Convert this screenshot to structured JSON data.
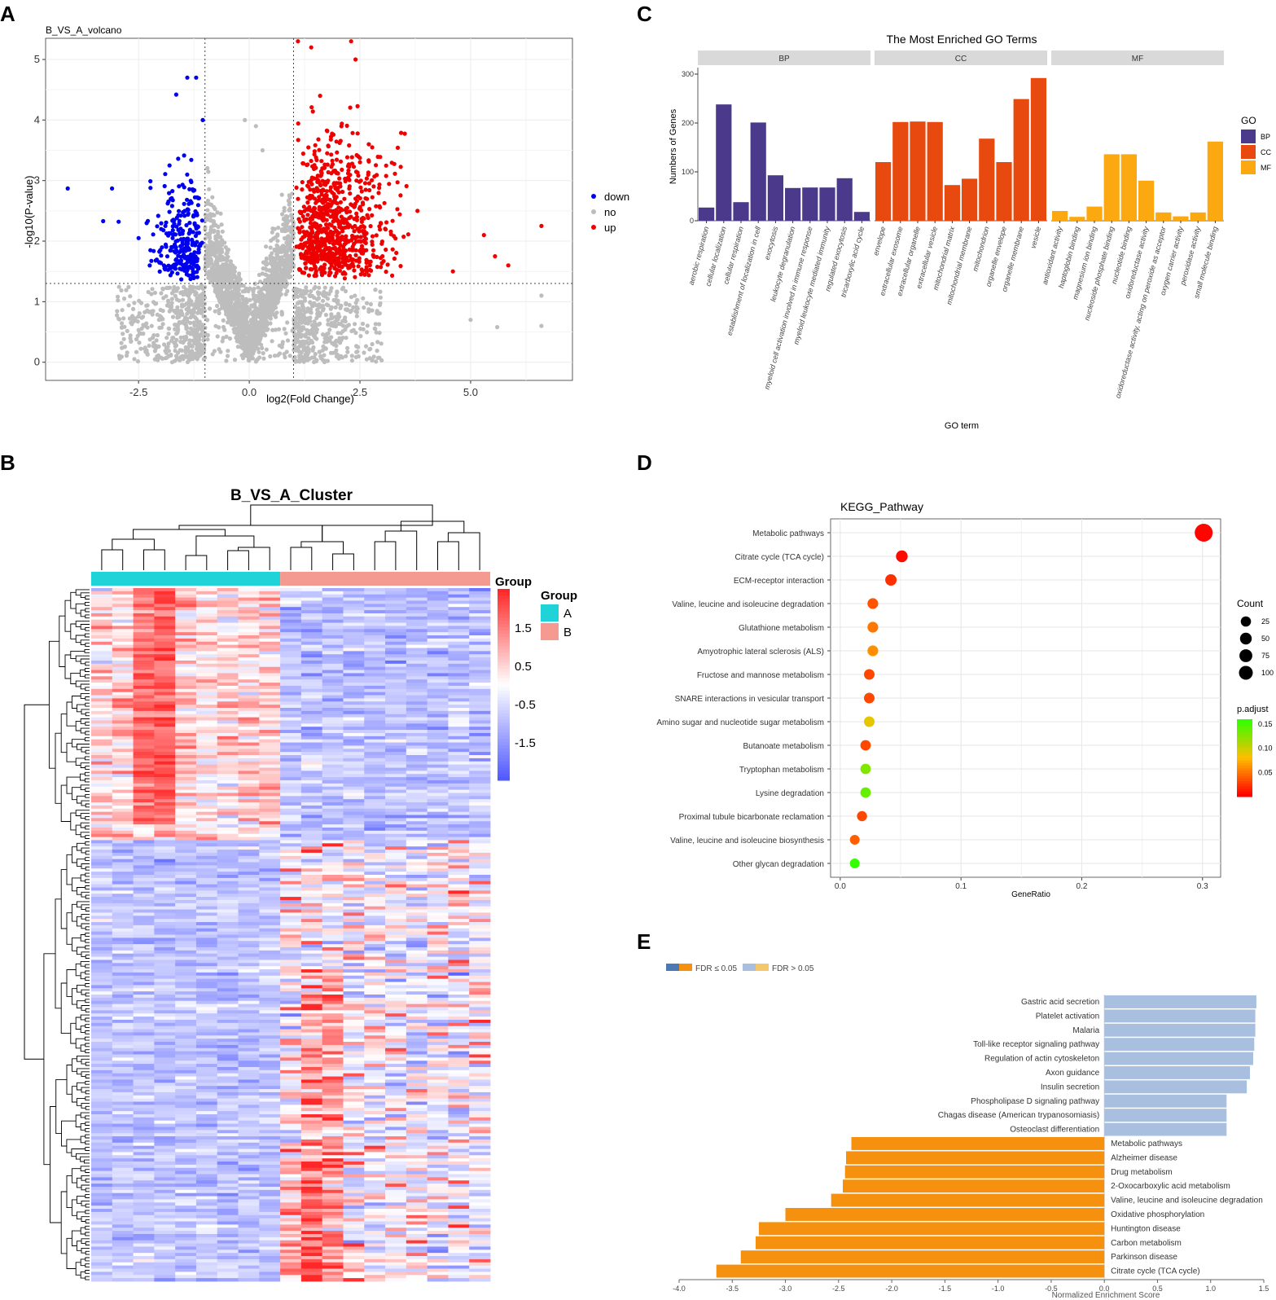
{
  "panel_labels": [
    "A",
    "B",
    "C",
    "D",
    "E"
  ],
  "chart_data": [
    {
      "panel": "A",
      "type": "scatter",
      "title": "B_VS_A_volcano",
      "xlabel": "log2(Fold Change)",
      "ylabel": "-log10(P-value)",
      "xlim": [
        -4.6,
        7.3
      ],
      "ylim": [
        -0.3,
        5.35
      ],
      "xticks": [
        -2.5,
        0.0,
        2.5,
        5.0
      ],
      "xtick_labels": [
        "-2.5",
        "0.0",
        "2.5",
        "5.0"
      ],
      "yticks": [
        0,
        1,
        2,
        3,
        4,
        5
      ],
      "ytick_labels": [
        "0",
        "1",
        "2",
        "3",
        "4",
        "5"
      ],
      "thresholds": {
        "log2fc": [
          -1,
          1
        ],
        "neg_log10_p": 1.3
      },
      "legend": [
        {
          "name": "down",
          "color": "#0000ee"
        },
        {
          "name": "no",
          "color": "#bdbdbd"
        },
        {
          "name": "up",
          "color": "#ee0000"
        }
      ],
      "highlight_points": {
        "down": [
          [
            -4.1,
            2.87
          ],
          [
            -3.1,
            2.87
          ],
          [
            -3.3,
            2.33
          ],
          [
            -2.95,
            2.32
          ],
          [
            -1.4,
            4.7
          ],
          [
            -1.2,
            4.7
          ],
          [
            -1.65,
            4.42
          ],
          [
            -1.05,
            4.0
          ],
          [
            -2.5,
            2.05
          ],
          [
            -1.8,
            3.25
          ]
        ],
        "up": [
          [
            1.1,
            5.3
          ],
          [
            1.4,
            5.2
          ],
          [
            2.3,
            5.3
          ],
          [
            2.4,
            5.0
          ],
          [
            3.8,
            2.5
          ],
          [
            5.3,
            2.1
          ],
          [
            6.6,
            2.25
          ],
          [
            5.85,
            1.6
          ],
          [
            5.55,
            1.75
          ],
          [
            4.6,
            1.5
          ],
          [
            2.7,
            3.6
          ],
          [
            1.6,
            4.4
          ]
        ],
        "no": [
          [
            6.6,
            1.1
          ],
          [
            6.6,
            0.6
          ],
          [
            5.6,
            0.58
          ],
          [
            5.0,
            0.7
          ],
          [
            -2.55,
            0.38
          ],
          [
            -0.1,
            4.0
          ],
          [
            0.15,
            3.9
          ],
          [
            0.3,
            3.5
          ]
        ]
      },
      "point_counts": {
        "down": 260,
        "no": 2600,
        "up": 820
      }
    },
    {
      "panel": "B",
      "type": "heatmap",
      "title": "B_VS_A_Cluster",
      "group_label": "Group",
      "groups": [
        {
          "name": "A",
          "color": "#1fd3d8",
          "samples": 9
        },
        {
          "name": "B",
          "color": "#f59a90",
          "samples": 10
        }
      ],
      "colorbar_ticks": [
        1.5,
        0.5,
        -0.5,
        -1.5
      ],
      "colorbar_tick_labels": [
        "1.5",
        "0.5",
        "-0.5",
        "-1.5"
      ],
      "value_range": [
        -2.5,
        2.5
      ],
      "row_count": 220,
      "col_count": 19
    },
    {
      "panel": "C",
      "type": "bar",
      "title": "The Most Enriched GO Terms",
      "xlabel": "GO term",
      "ylabel": "Numbers of Genes",
      "ylim": [
        0,
        310
      ],
      "yticks": [
        0,
        100,
        200,
        300
      ],
      "legend_title": "GO",
      "facets": [
        {
          "name": "BP",
          "color": "#4b3a8c",
          "categories": [
            "aerobic respiration",
            "cellular localization",
            "cellular respiration",
            "establishment of localization in cell",
            "exocytosis",
            "leukocyte degranulation",
            "myeloid cell activation involved in immune response",
            "myeloid leukocyte mediated immunity",
            "regulated exocytosis",
            "tricarboxylic acid cycle"
          ],
          "values": [
            27,
            238,
            38,
            201,
            93,
            67,
            68,
            68,
            87,
            18
          ]
        },
        {
          "name": "CC",
          "color": "#e8490f",
          "categories": [
            "envelope",
            "extracellular exosome",
            "extracellular organelle",
            "extracellular vesicle",
            "mitochondrial matrix",
            "mitochondrial membrane",
            "mitochondrion",
            "organelle envelope",
            "organelle membrane",
            "vesicle"
          ],
          "values": [
            120,
            202,
            203,
            202,
            73,
            86,
            168,
            120,
            249,
            292
          ]
        },
        {
          "name": "MF",
          "color": "#fca811",
          "categories": [
            "antioxidant activity",
            "haptoglobin binding",
            "magnesium ion binding",
            "nucleoside phosphate binding",
            "nucleotide binding",
            "oxidoreductase activity",
            "oxidoreductase activity, acting on peroxide as acceptor",
            "oxygen carrier activity",
            "peroxidase activity",
            "small molecule binding"
          ],
          "values": [
            20,
            8,
            29,
            136,
            136,
            82,
            17,
            9,
            17,
            162
          ]
        }
      ]
    },
    {
      "panel": "D",
      "type": "scatter",
      "title": "KEGG_Pathway",
      "xlabel": "GeneRatio",
      "xlim": [
        -0.008,
        0.315
      ],
      "xticks": [
        0.0,
        0.1,
        0.2,
        0.3
      ],
      "xtick_labels": [
        "0.0",
        "0.1",
        "0.2",
        "0.3"
      ],
      "categories": [
        "Metabolic pathways",
        "Citrate cycle (TCA cycle)",
        "ECM-receptor interaction",
        "Valine, leucine and isoleucine degradation",
        "Glutathione metabolism",
        "Amyotrophic lateral sclerosis (ALS)",
        "Fructose and mannose metabolism",
        "SNARE interactions in vesicular transport",
        "Amino sugar and nucleotide sugar metabolism",
        "Butanoate metabolism",
        "Tryptophan metabolism",
        "Lysine degradation",
        "Proximal tubule bicarbonate reclamation",
        "Valine, leucine and isoleucine biosynthesis",
        "Other glycan degradation"
      ],
      "gene_ratio": [
        0.301,
        0.051,
        0.042,
        0.027,
        0.027,
        0.027,
        0.024,
        0.024,
        0.024,
        0.021,
        0.021,
        0.021,
        0.018,
        0.012,
        0.012
      ],
      "count": [
        106,
        18,
        15,
        10,
        10,
        10,
        9,
        9,
        9,
        8,
        8,
        8,
        7,
        5,
        5
      ],
      "p_adjust": [
        0.002,
        0.004,
        0.02,
        0.035,
        0.05,
        0.06,
        0.03,
        0.03,
        0.09,
        0.03,
        0.13,
        0.14,
        0.03,
        0.04,
        0.16
      ],
      "size_legend_title": "Count",
      "size_legend": [
        25,
        50,
        75,
        100
      ],
      "color_legend_title": "p.adjust",
      "color_legend": [
        0.15,
        0.1,
        0.05
      ],
      "color_legend_labels": [
        "0.15",
        "0.10",
        "0.05"
      ],
      "colors": {
        "low": "#ff0000",
        "high": "#33ff00"
      }
    },
    {
      "panel": "E",
      "type": "bar",
      "orientation": "horizontal",
      "xlabel": "Normalized Enrichment Score",
      "xlim": [
        -4.0,
        1.5
      ],
      "xticks": [
        -4.0,
        -3.5,
        -3.0,
        -2.5,
        -2.0,
        -1.5,
        -1.0,
        -0.5,
        0.0,
        0.5,
        1.0,
        1.5
      ],
      "xtick_labels": [
        "-4.0",
        "-3.5",
        "-3.0",
        "-2.5",
        "-2.0",
        "-1.5",
        "-1.0",
        "-0.5",
        "0.0",
        "0.5",
        "1.0",
        "1.5"
      ],
      "legend": [
        {
          "label": "FDR ≤ 0.05",
          "colors": [
            "#4a79b5",
            "#f5910f"
          ]
        },
        {
          "label": "FDR > 0.05",
          "colors": [
            "#a9bfe0",
            "#f5c76b"
          ]
        }
      ],
      "categories": [
        "Gastric acid secretion",
        "Platelet activation",
        "Malaria",
        "Toll-like receptor signaling pathway",
        "Regulation of actin cytoskeleton",
        "Axon guidance",
        "Insulin secretion",
        "Phospholipase D signaling pathway",
        "Chagas disease (American trypanosomiasis)",
        "Osteoclast differentiation",
        "Metabolic pathways",
        "Alzheimer disease",
        "Drug metabolism",
        "2-Oxocarboxylic acid metabolism",
        "Valine, leucine and isoleucine degradation",
        "Oxidative phosphorylation",
        "Huntington disease",
        "Carbon metabolism",
        "Parkinson disease",
        "Citrate cycle (TCA cycle)"
      ],
      "values": [
        1.43,
        1.42,
        1.42,
        1.41,
        1.4,
        1.37,
        1.34,
        1.15,
        1.15,
        1.15,
        -2.38,
        -2.43,
        -2.44,
        -2.46,
        -2.57,
        -3.0,
        -3.25,
        -3.28,
        -3.42,
        -3.65
      ],
      "bar_colors": {
        "positive": "#a9bfe0",
        "negative": "#f5910f"
      }
    }
  ]
}
